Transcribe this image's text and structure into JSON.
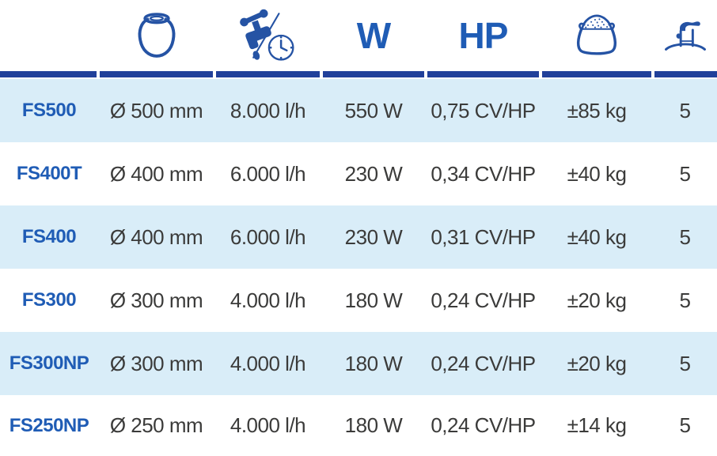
{
  "colors": {
    "navy": "#21409a",
    "icon_blue": "#2553a4",
    "accent_blue": "#1f5cb5",
    "text_dark": "#3b3b3a",
    "row_light": "#d9edf8",
    "row_white": "#ffffff"
  },
  "table": {
    "columns": [
      {
        "key": "model",
        "label": "",
        "icon": ""
      },
      {
        "key": "diameter",
        "label": "",
        "icon": "filter-tank-icon"
      },
      {
        "key": "flow_rate",
        "label": "",
        "icon": "tap-clock-icon"
      },
      {
        "key": "power",
        "label": "W",
        "icon": ""
      },
      {
        "key": "horsepower",
        "label": "HP",
        "icon": ""
      },
      {
        "key": "sand_load",
        "label": "",
        "icon": "sand-bag-icon"
      },
      {
        "key": "valve_ways",
        "label": "",
        "icon": "multiport-valve-icon"
      }
    ],
    "rows": [
      {
        "model": "FS500",
        "diameter": "Ø 500 mm",
        "flow_rate": "8.000 l/h",
        "power": "550 W",
        "horsepower": "0,75 CV/HP",
        "sand_load": "±85 kg",
        "valve_ways": "5"
      },
      {
        "model": "FS400T",
        "diameter": "Ø 400 mm",
        "flow_rate": "6.000 l/h",
        "power": "230 W",
        "horsepower": "0,34 CV/HP",
        "sand_load": "±40 kg",
        "valve_ways": "5"
      },
      {
        "model": "FS400",
        "diameter": "Ø 400 mm",
        "flow_rate": "6.000 l/h",
        "power": "230 W",
        "horsepower": "0,31 CV/HP",
        "sand_load": "±40 kg",
        "valve_ways": "5"
      },
      {
        "model": "FS300",
        "diameter": "Ø 300 mm",
        "flow_rate": "4.000 l/h",
        "power": "180 W",
        "horsepower": "0,24 CV/HP",
        "sand_load": "±20 kg",
        "valve_ways": "5"
      },
      {
        "model": "FS300NP",
        "diameter": "Ø 300 mm",
        "flow_rate": "4.000 l/h",
        "power": "180 W",
        "horsepower": "0,24 CV/HP",
        "sand_load": "±20 kg",
        "valve_ways": "5"
      },
      {
        "model": "FS250NP",
        "diameter": "Ø 250 mm",
        "flow_rate": "4.000 l/h",
        "power": "180 W",
        "horsepower": "0,24 CV/HP",
        "sand_load": "±14 kg",
        "valve_ways": "5"
      }
    ]
  }
}
